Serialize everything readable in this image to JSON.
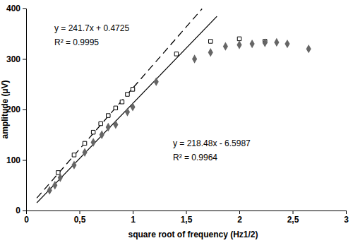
{
  "chart_data": {
    "type": "scatter",
    "x_label": "square root of frequency (Hz1/2)",
    "y_label": "amplitude (µV)",
    "xlim": [
      0,
      3
    ],
    "xticks": [
      0,
      {
        "value": 0.5,
        "label": "0,5"
      },
      1,
      {
        "value": 1.5,
        "label": "1,5"
      },
      2,
      {
        "value": 2.5,
        "label": "2,5"
      },
      3
    ],
    "ylim": [
      0,
      400
    ],
    "yticks": [
      0,
      100,
      200,
      300,
      400
    ],
    "grid": false,
    "annotations": [
      "y = 241.7x + 0.4725",
      "R² = 0.9995",
      "y = 218.48x - 6.5987",
      "R² = 0.9964"
    ],
    "series": [
      {
        "type": "line",
        "line_style": "dashed",
        "color": "#000000",
        "x": [
          0.1,
          1.65
        ],
        "values": [
          24.6,
          399.3
        ]
      },
      {
        "type": "line",
        "line_style": "solid",
        "color": "#000000",
        "x": [
          0.1,
          1.79
        ],
        "values": [
          15.2,
          384.5
        ]
      },
      {
        "type": "scatter",
        "marker": "open-square",
        "color": "#000000",
        "x": [
          0.3,
          0.45,
          0.55,
          0.63,
          0.7,
          0.77,
          0.84,
          0.9,
          0.95,
          1.0,
          1.41,
          1.73,
          2.0,
          2.24
        ],
        "values": [
          75,
          110,
          133,
          155,
          172,
          188,
          203,
          215,
          230,
          240,
          310,
          335,
          340,
          335
        ]
      },
      {
        "type": "scatter",
        "marker": "diamond",
        "color": "#666666",
        "x": [
          0.22,
          0.27,
          0.32,
          0.45,
          0.55,
          0.63,
          0.71,
          0.77,
          0.84,
          0.95,
          1.0,
          1.22,
          1.58,
          1.73,
          1.87,
          2.0,
          2.12,
          2.24,
          2.35,
          2.45,
          2.65
        ],
        "values": [
          40,
          50,
          65,
          90,
          115,
          135,
          150,
          165,
          170,
          195,
          205,
          255,
          300,
          313,
          325,
          328,
          330,
          332,
          333,
          330,
          320
        ]
      }
    ]
  }
}
